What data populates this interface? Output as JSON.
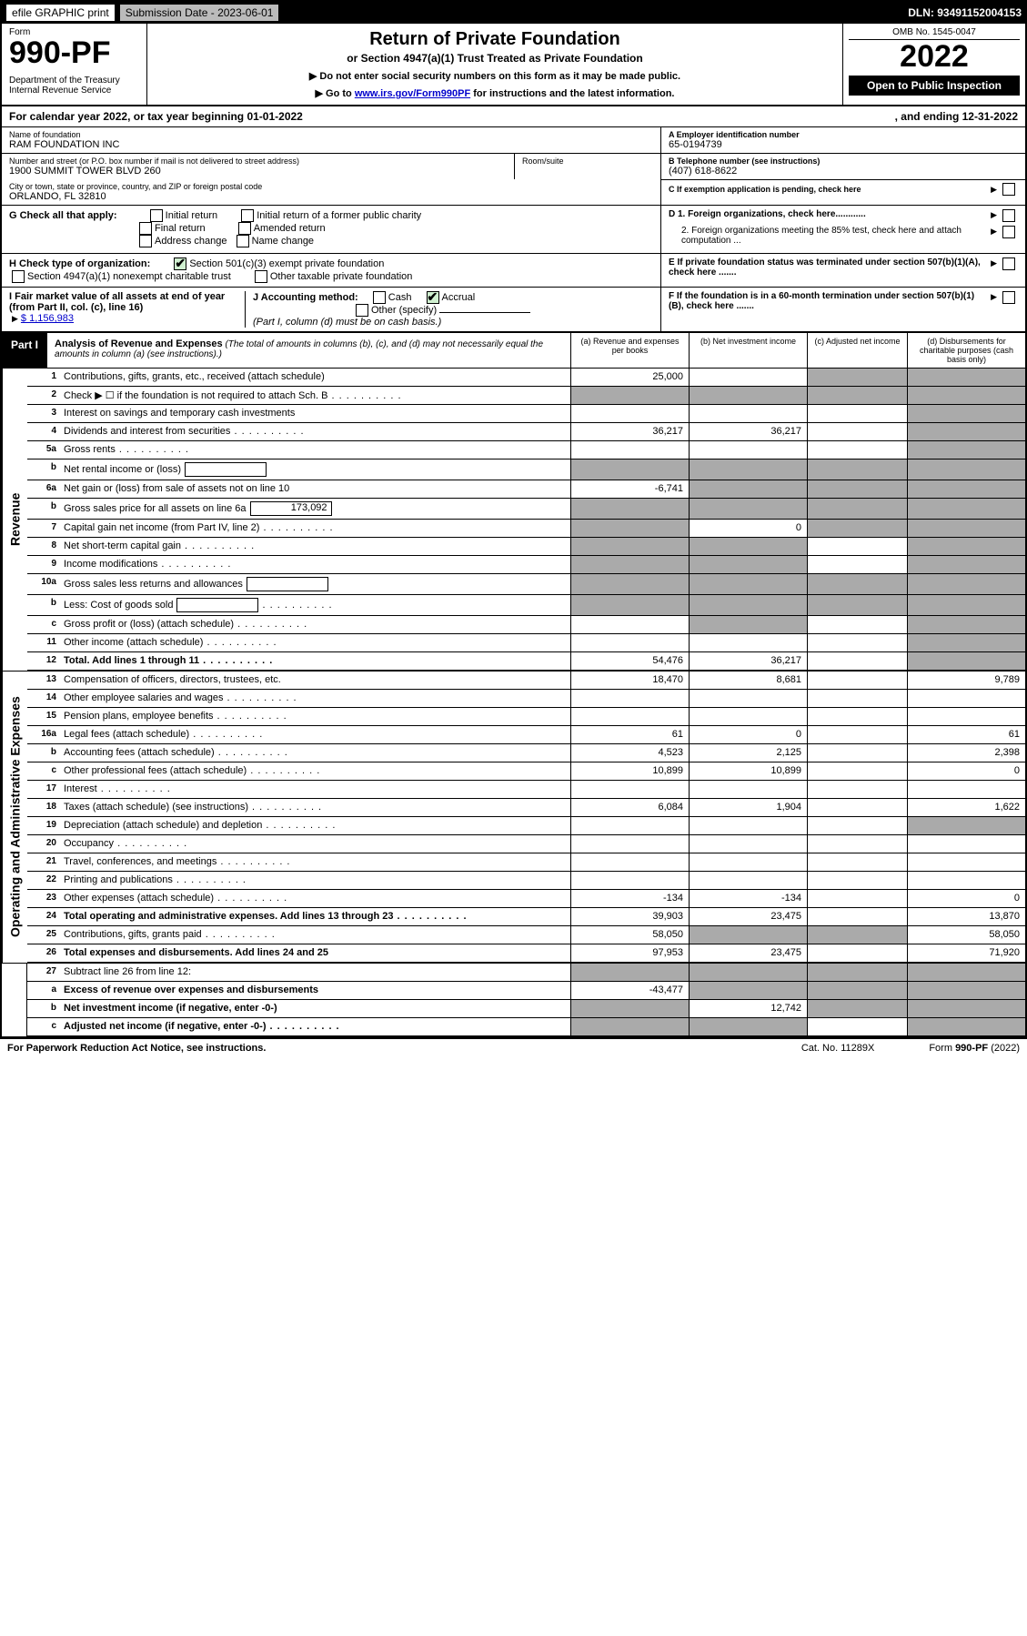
{
  "topbar": {
    "efile": "efile GRAPHIC print",
    "sub_label": "Submission Date - 2023-06-01",
    "dln": "DLN: 93491152004153"
  },
  "hdr": {
    "form": "Form",
    "num": "990-PF",
    "dept": "Department of the Treasury",
    "irs": "Internal Revenue Service",
    "title": "Return of Private Foundation",
    "sub1": "or Section 4947(a)(1) Trust Treated as Private Foundation",
    "sub2a": "▶ Do not enter social security numbers on this form as it may be made public.",
    "sub2b": "▶ Go to ",
    "sub2b_link": "www.irs.gov/Form990PF",
    "sub2b_after": " for instructions and the latest information.",
    "omb": "OMB No. 1545-0047",
    "year": "2022",
    "open": "Open to Public Inspection"
  },
  "cal": {
    "pre": "For calendar year 2022, or tax year beginning ",
    "beg": "01-01-2022",
    "mid": ", and ending ",
    "end": "12-31-2022"
  },
  "entity": {
    "name_lbl": "Name of foundation",
    "name": "RAM FOUNDATION INC",
    "addr_lbl": "Number and street (or P.O. box number if mail is not delivered to street address)",
    "addr": "1900 SUMMIT TOWER BLVD 260",
    "room_lbl": "Room/suite",
    "room": "",
    "city_lbl": "City or town, state or province, country, and ZIP or foreign postal code",
    "city": "ORLANDO, FL  32810",
    "a_lbl": "A Employer identification number",
    "ein": "65-0194739",
    "b_lbl": "B Telephone number (see instructions)",
    "phone": "(407) 618-8622",
    "c_lbl": "C If exemption application is pending, check here"
  },
  "g": {
    "lbl": "G Check all that apply:",
    "initial": "Initial return",
    "initial_former": "Initial return of a former public charity",
    "final": "Final return",
    "amended": "Amended return",
    "addr_change": "Address change",
    "name_change": "Name change"
  },
  "h": {
    "lbl": "H Check type of organization:",
    "c3": "Section 501(c)(3) exempt private foundation",
    "trust": "Section 4947(a)(1) nonexempt charitable trust",
    "other": "Other taxable private foundation"
  },
  "i": {
    "lbl": "I Fair market value of all assets at end of year (from Part II, col. (c), line 16)",
    "amt": "$ 1,156,983"
  },
  "j": {
    "lbl": "J Accounting method:",
    "cash": "Cash",
    "accrual": "Accrual",
    "other": "Other (specify)",
    "note": "(Part I, column (d) must be on cash basis.)"
  },
  "d1": {
    "lbl": "D 1. Foreign organizations, check here............",
    "l2": "2. Foreign organizations meeting the 85% test, check here and attach computation ..."
  },
  "e": {
    "lbl": "E  If private foundation status was terminated under section 507(b)(1)(A), check here ......."
  },
  "f": {
    "lbl": "F  If the foundation is in a 60-month termination under section 507(b)(1)(B), check here ......."
  },
  "part1": {
    "tab": "Part I",
    "title": "Analysis of Revenue and Expenses",
    "note": "(The total of amounts in columns (b), (c), and (d) may not necessarily equal the amounts in column (a) (see instructions).)",
    "cols": {
      "a": "(a)   Revenue and expenses per books",
      "b": "(b)   Net investment income",
      "c": "(c)   Adjusted net income",
      "d": "(d)   Disbursements for charitable purposes (cash basis only)"
    }
  },
  "sidelabels": {
    "rev": "Revenue",
    "exp": "Operating and Administrative Expenses"
  },
  "rows": [
    {
      "ln": "1",
      "desc": "Contributions, gifts, grants, etc., received (attach schedule)",
      "a": "25,000",
      "b": "",
      "c": "shade",
      "d": "shade"
    },
    {
      "ln": "2",
      "desc": "Check ▶ ☐ if the foundation is not required to attach Sch. B",
      "dots": true,
      "a": "shade",
      "b": "shade",
      "c": "shade",
      "d": "shade"
    },
    {
      "ln": "3",
      "desc": "Interest on savings and temporary cash investments",
      "a": "",
      "b": "",
      "c": "",
      "d": "shade"
    },
    {
      "ln": "4",
      "desc": "Dividends and interest from securities",
      "dots": true,
      "a": "36,217",
      "b": "36,217",
      "c": "",
      "d": "shade"
    },
    {
      "ln": "5a",
      "desc": "Gross rents",
      "dots": true,
      "a": "",
      "b": "",
      "c": "",
      "d": "shade"
    },
    {
      "ln": "b",
      "desc": "Net rental income or (loss)",
      "inset": "",
      "a": "shade",
      "b": "shade",
      "c": "shade",
      "d": "shade"
    },
    {
      "ln": "6a",
      "desc": "Net gain or (loss) from sale of assets not on line 10",
      "a": "-6,741",
      "b": "shade",
      "c": "shade",
      "d": "shade"
    },
    {
      "ln": "b",
      "desc": "Gross sales price for all assets on line 6a",
      "inset": "173,092",
      "a": "shade",
      "b": "shade",
      "c": "shade",
      "d": "shade"
    },
    {
      "ln": "7",
      "desc": "Capital gain net income (from Part IV, line 2)",
      "dots": true,
      "a": "shade",
      "b": "0",
      "c": "shade",
      "d": "shade"
    },
    {
      "ln": "8",
      "desc": "Net short-term capital gain",
      "dots": true,
      "a": "shade",
      "b": "shade",
      "c": "",
      "d": "shade"
    },
    {
      "ln": "9",
      "desc": "Income modifications",
      "dots": true,
      "a": "shade",
      "b": "shade",
      "c": "",
      "d": "shade"
    },
    {
      "ln": "10a",
      "desc": "Gross sales less returns and allowances",
      "inset": "",
      "a": "shade",
      "b": "shade",
      "c": "shade",
      "d": "shade"
    },
    {
      "ln": "b",
      "desc": "Less: Cost of goods sold",
      "dots": true,
      "inset": "",
      "a": "shade",
      "b": "shade",
      "c": "shade",
      "d": "shade"
    },
    {
      "ln": "c",
      "desc": "Gross profit or (loss) (attach schedule)",
      "dots": true,
      "a": "",
      "b": "shade",
      "c": "",
      "d": "shade"
    },
    {
      "ln": "11",
      "desc": "Other income (attach schedule)",
      "dots": true,
      "a": "",
      "b": "",
      "c": "",
      "d": "shade"
    },
    {
      "ln": "12",
      "desc": "Total. Add lines 1 through 11",
      "dots": true,
      "bold": true,
      "a": "54,476",
      "b": "36,217",
      "c": "",
      "d": "shade"
    }
  ],
  "exp_rows": [
    {
      "ln": "13",
      "desc": "Compensation of officers, directors, trustees, etc.",
      "a": "18,470",
      "b": "8,681",
      "c": "",
      "d": "9,789"
    },
    {
      "ln": "14",
      "desc": "Other employee salaries and wages",
      "dots": true,
      "a": "",
      "b": "",
      "c": "",
      "d": ""
    },
    {
      "ln": "15",
      "desc": "Pension plans, employee benefits",
      "dots": true,
      "a": "",
      "b": "",
      "c": "",
      "d": ""
    },
    {
      "ln": "16a",
      "desc": "Legal fees (attach schedule)",
      "dots": true,
      "a": "61",
      "b": "0",
      "c": "",
      "d": "61"
    },
    {
      "ln": "b",
      "desc": "Accounting fees (attach schedule)",
      "dots": true,
      "a": "4,523",
      "b": "2,125",
      "c": "",
      "d": "2,398"
    },
    {
      "ln": "c",
      "desc": "Other professional fees (attach schedule)",
      "dots": true,
      "a": "10,899",
      "b": "10,899",
      "c": "",
      "d": "0"
    },
    {
      "ln": "17",
      "desc": "Interest",
      "dots": true,
      "a": "",
      "b": "",
      "c": "",
      "d": ""
    },
    {
      "ln": "18",
      "desc": "Taxes (attach schedule) (see instructions)",
      "dots": true,
      "a": "6,084",
      "b": "1,904",
      "c": "",
      "d": "1,622"
    },
    {
      "ln": "19",
      "desc": "Depreciation (attach schedule) and depletion",
      "dots": true,
      "a": "",
      "b": "",
      "c": "",
      "d": "shade"
    },
    {
      "ln": "20",
      "desc": "Occupancy",
      "dots": true,
      "a": "",
      "b": "",
      "c": "",
      "d": ""
    },
    {
      "ln": "21",
      "desc": "Travel, conferences, and meetings",
      "dots": true,
      "a": "",
      "b": "",
      "c": "",
      "d": ""
    },
    {
      "ln": "22",
      "desc": "Printing and publications",
      "dots": true,
      "a": "",
      "b": "",
      "c": "",
      "d": ""
    },
    {
      "ln": "23",
      "desc": "Other expenses (attach schedule)",
      "dots": true,
      "a": "-134",
      "b": "-134",
      "c": "",
      "d": "0"
    },
    {
      "ln": "24",
      "desc": "Total operating and administrative expenses. Add lines 13 through 23",
      "dots": true,
      "bold": true,
      "a": "39,903",
      "b": "23,475",
      "c": "",
      "d": "13,870"
    },
    {
      "ln": "25",
      "desc": "Contributions, gifts, grants paid",
      "dots": true,
      "a": "58,050",
      "b": "shade",
      "c": "shade",
      "d": "58,050"
    },
    {
      "ln": "26",
      "desc": "Total expenses and disbursements. Add lines 24 and 25",
      "bold": true,
      "a": "97,953",
      "b": "23,475",
      "c": "",
      "d": "71,920"
    }
  ],
  "net_rows": [
    {
      "ln": "27",
      "desc": "Subtract line 26 from line 12:",
      "a": "shade",
      "b": "shade",
      "c": "shade",
      "d": "shade"
    },
    {
      "ln": "a",
      "desc": "Excess of revenue over expenses and disbursements",
      "bold": true,
      "a": "-43,477",
      "b": "shade",
      "c": "shade",
      "d": "shade"
    },
    {
      "ln": "b",
      "desc": "Net investment income (if negative, enter -0-)",
      "bold": true,
      "a": "shade",
      "b": "12,742",
      "c": "shade",
      "d": "shade"
    },
    {
      "ln": "c",
      "desc": "Adjusted net income (if negative, enter -0-)",
      "bold": true,
      "dots": true,
      "a": "shade",
      "b": "shade",
      "c": "",
      "d": "shade"
    }
  ],
  "footer": {
    "pra": "For Paperwork Reduction Act Notice, see instructions.",
    "cat": "Cat. No. 11289X",
    "form": "Form 990-PF (2022)"
  }
}
